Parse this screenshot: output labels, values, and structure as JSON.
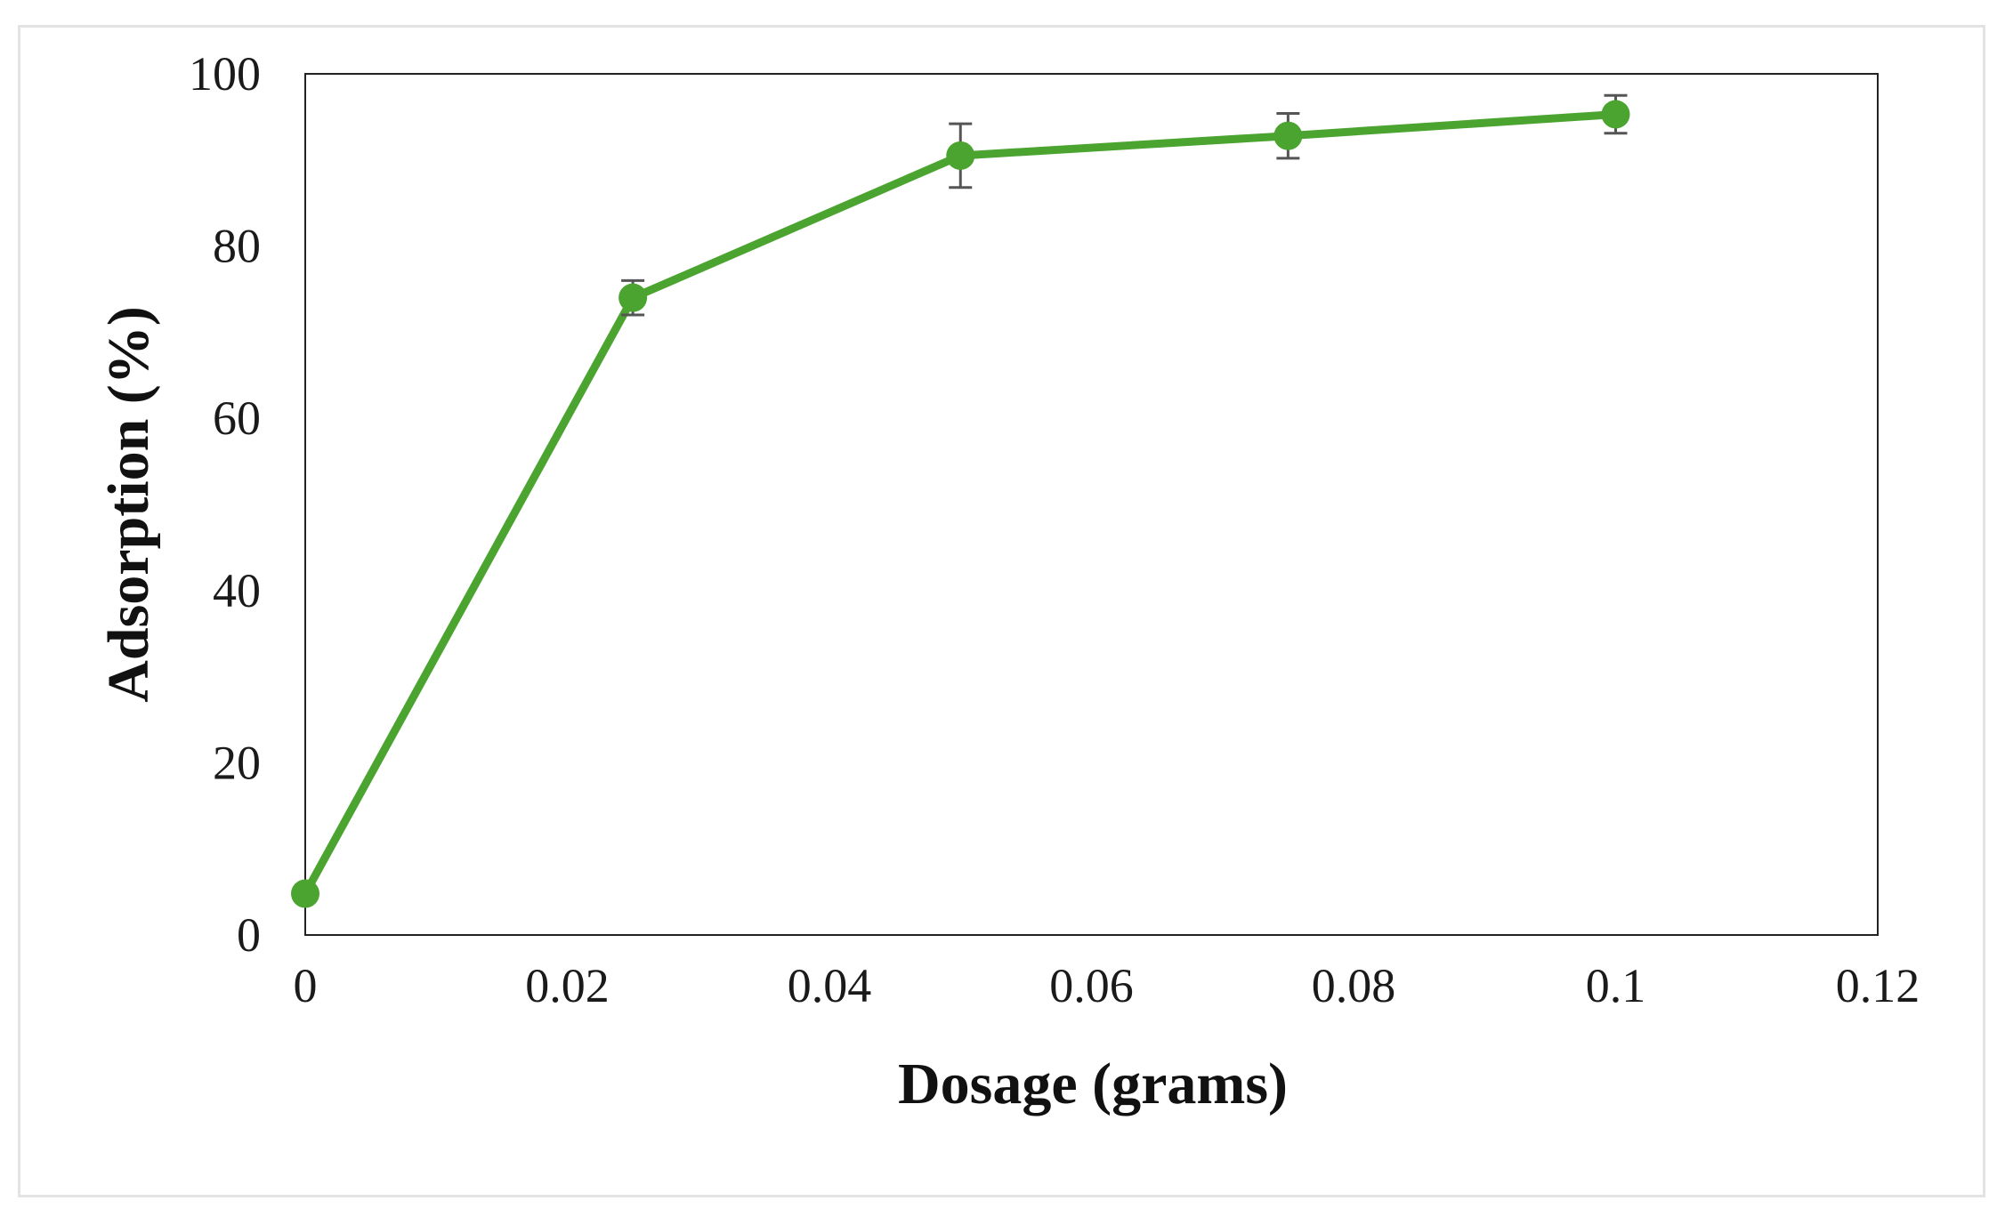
{
  "chart_data": {
    "type": "line",
    "title": "",
    "xlabel": "Dosage (grams)",
    "ylabel": "Adsorption (%)",
    "xlim": [
      0,
      0.12
    ],
    "ylim": [
      0,
      100
    ],
    "xticks": [
      "0",
      "0.02",
      "0.04",
      "0.06",
      "0.08",
      "0.1",
      "0.12"
    ],
    "yticks": [
      "0",
      "20",
      "40",
      "60",
      "80",
      "100"
    ],
    "grid": false,
    "legend": "none",
    "series": [
      {
        "color": "#4aa42f",
        "points": [
          {
            "x": 0,
            "y": 4.8,
            "err": 0
          },
          {
            "x": 0.025,
            "y": 74.0,
            "err": 2.0
          },
          {
            "x": 0.05,
            "y": 90.5,
            "err": 3.7
          },
          {
            "x": 0.075,
            "y": 92.8,
            "err": 2.6
          },
          {
            "x": 0.1,
            "y": 95.3,
            "err": 2.2
          }
        ]
      }
    ],
    "error_bar_color": "#555555"
  }
}
